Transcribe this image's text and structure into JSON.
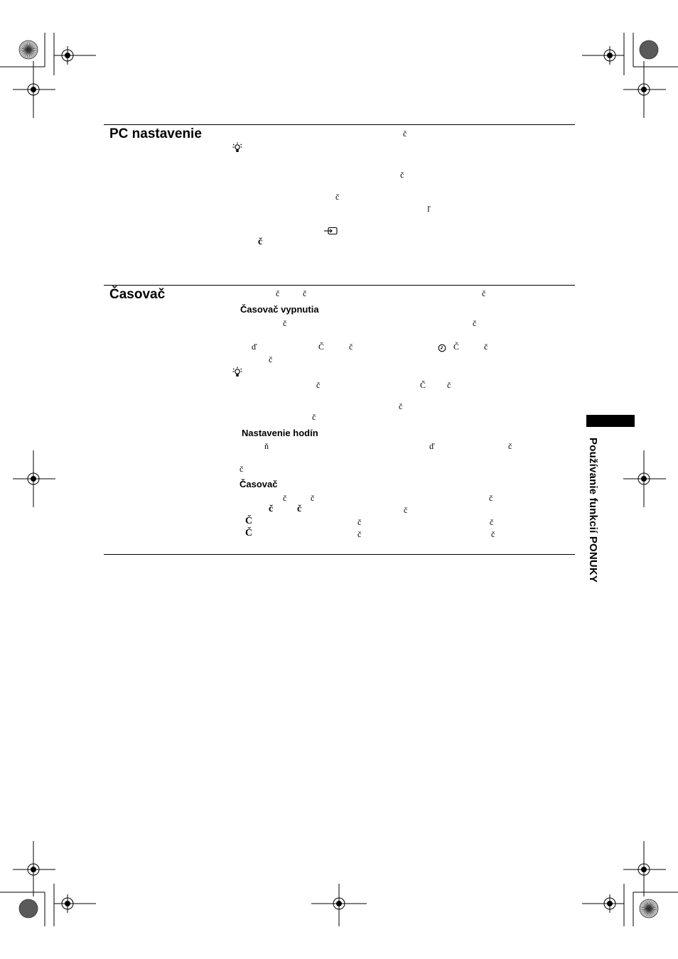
{
  "section_pc": {
    "title": "PC nastavenie",
    "glyphs": [
      "č",
      "č",
      "č",
      "ľ",
      "č"
    ]
  },
  "section_timer": {
    "title": "Časovač",
    "glyphs_intro": [
      "č",
      "č",
      "č"
    ],
    "sub_sleep": {
      "title": "Časovač vypnutia",
      "glyphs": [
        "č",
        "č",
        "ď",
        "Č",
        "č",
        "Č",
        "č",
        "č",
        "č",
        "Č",
        "č",
        "č",
        "č"
      ]
    },
    "sub_clock": {
      "title": "Nastavenie hodín",
      "glyphs": [
        "ň",
        "ď",
        "č",
        "č"
      ]
    },
    "sub_timer": {
      "title": "Časovač",
      "glyphs": [
        "č",
        "č",
        "č",
        "č",
        "č",
        "č",
        "Č",
        "č",
        "č",
        "Č",
        "č",
        "č"
      ]
    }
  },
  "side_tab": {
    "label": "Používanie funkcií PONUKY"
  },
  "icons": [
    "lightbulb-icon",
    "input-icon",
    "timer-icon",
    "registration-mark-icon",
    "color-wheel-icon"
  ]
}
